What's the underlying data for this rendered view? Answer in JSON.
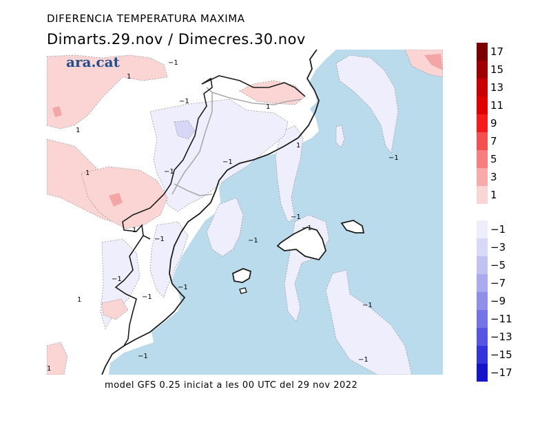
{
  "title": "DIFERENCIA TEMPERATURA MAXIMA",
  "subtitle": "Dimarts.29.nov / Dimecres.30.nov",
  "logo": "ara.cat",
  "footer": "model GFS 0.25 iniciat a les 00 UTC del 29 nov 2022",
  "colors": {
    "sea": "#b9dbeb",
    "land": "#ffffff",
    "warm_1": "#fbd4d4",
    "warm_3": "#f4a6a6",
    "cool_1": "#eeeefc",
    "cool_3": "#d6d6f6",
    "coast": "#1b1b1b",
    "border": "#aaaaaa"
  },
  "contour_labels": [
    {
      "text": "1"
    },
    {
      "text": "−1"
    },
    {
      "text": "1"
    },
    {
      "text": "−1"
    },
    {
      "text": "1"
    },
    {
      "text": "1"
    },
    {
      "text": "1"
    },
    {
      "text": "−1"
    },
    {
      "text": "1"
    },
    {
      "text": "−1"
    },
    {
      "text": "−1"
    },
    {
      "text": "−1"
    },
    {
      "text": "−1"
    },
    {
      "text": "−1"
    },
    {
      "text": "−1"
    },
    {
      "text": "−1"
    },
    {
      "text": "1"
    },
    {
      "text": "−1"
    },
    {
      "text": "−1"
    },
    {
      "text": "−1"
    },
    {
      "text": "−1"
    },
    {
      "text": "−1"
    },
    {
      "text": "1"
    }
  ],
  "legend": {
    "warm": [
      {
        "label": "17",
        "color": "#7a0000"
      },
      {
        "label": "15",
        "color": "#a00000"
      },
      {
        "label": "13",
        "color": "#c80000"
      },
      {
        "label": "11",
        "color": "#e00000"
      },
      {
        "label": "9",
        "color": "#f51c1c"
      },
      {
        "label": "7",
        "color": "#f45050"
      },
      {
        "label": "5",
        "color": "#f67e7e"
      },
      {
        "label": "3",
        "color": "#f8aaaa"
      },
      {
        "label": "1",
        "color": "#fbd4d4"
      }
    ],
    "cool": [
      {
        "label": "−1",
        "color": "#ededfc"
      },
      {
        "label": "−3",
        "color": "#d8d8f7"
      },
      {
        "label": "−5",
        "color": "#c2c2f2"
      },
      {
        "label": "−7",
        "color": "#aaaaee"
      },
      {
        "label": "−9",
        "color": "#9090ea"
      },
      {
        "label": "−11",
        "color": "#7474e6"
      },
      {
        "label": "−13",
        "color": "#5656e2"
      },
      {
        "label": "−15",
        "color": "#3434dc"
      },
      {
        "label": "−17",
        "color": "#1414c8"
      }
    ]
  }
}
